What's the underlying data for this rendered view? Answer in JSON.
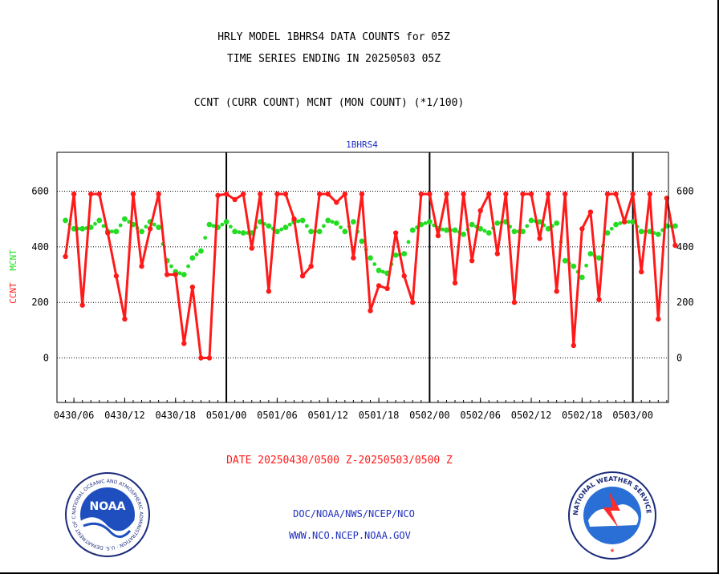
{
  "title_line1": "HRLY MODEL 1BHRS4 DATA COUNTS for 05Z",
  "title_line2": "TIME SERIES ENDING IN 20250503 05Z",
  "subtitle": "CCNT (CURR COUNT) MCNT (MON COUNT) (*1/100)",
  "plot_label": "1BHRS4",
  "date_range": "DATE 20250430/0500 Z-20250503/0500 Z",
  "footer": {
    "org_line": "DOC/NOAA/NWS/NCEP/NCO",
    "url_line": "WWW.NCO.NCEP.NOAA.GOV"
  },
  "logos": {
    "noaa": {
      "center": "NOAA",
      "ring_text": "NATIONAL OCEANIC AND ATMOSPHERIC ADMINISTRATION · U.S. DEPARTMENT OF COMMERCE"
    },
    "nws": {
      "ring_text": "NATIONAL WEATHER SERVICE"
    }
  },
  "colors": {
    "ccnt": "#ff1a1a",
    "mcnt": "#22dd22",
    "title": "#000000",
    "label_blue": "#1f2fbf",
    "date_red": "#ff1a1a"
  },
  "chart_data": {
    "type": "line",
    "ylabel_parts": [
      {
        "text": "CCNT",
        "color": "#ff1a1a"
      },
      {
        "text": "MCNT",
        "color": "#22dd22"
      }
    ],
    "ylim": [
      -160,
      740
    ],
    "yticks": [
      0,
      200,
      400,
      600
    ],
    "x_start_hour": -1,
    "x_end_hour": 71.2,
    "xticks": [
      {
        "hour": 1,
        "label": "0430/06"
      },
      {
        "hour": 7,
        "label": "0430/12"
      },
      {
        "hour": 13,
        "label": "0430/18"
      },
      {
        "hour": 19,
        "label": "0501/00"
      },
      {
        "hour": 25,
        "label": "0501/06"
      },
      {
        "hour": 31,
        "label": "0501/12"
      },
      {
        "hour": 37,
        "label": "0501/18"
      },
      {
        "hour": 43,
        "label": "0502/00"
      },
      {
        "hour": 49,
        "label": "0502/06"
      },
      {
        "hour": 55,
        "label": "0502/12"
      },
      {
        "hour": 61,
        "label": "0502/18"
      },
      {
        "hour": 67,
        "label": "0503/00"
      }
    ],
    "day_boundaries": [
      19,
      43,
      67
    ],
    "grid": "horizontal dotted",
    "series": [
      {
        "name": "CCNT",
        "color": "#ff1a1a",
        "values": [
          365,
          590,
          190,
          590,
          590,
          450,
          295,
          140,
          590,
          330,
          465,
          590,
          300,
          300,
          52,
          255,
          0,
          0,
          585,
          590,
          570,
          590,
          395,
          590,
          240,
          590,
          590,
          500,
          295,
          330,
          590,
          590,
          560,
          590,
          360,
          590,
          170,
          260,
          250,
          450,
          295,
          200,
          590,
          590,
          440,
          590,
          270,
          590,
          350,
          530,
          590,
          375,
          590,
          200,
          590,
          590,
          430,
          590,
          240,
          590,
          45,
          465,
          525,
          210,
          590,
          590,
          490,
          590,
          310,
          590,
          140,
          575,
          405
        ]
      },
      {
        "name": "MCNT",
        "color": "#22dd22",
        "values": [
          495,
          465,
          465,
          470,
          495,
          455,
          455,
          500,
          480,
          455,
          490,
          470,
          350,
          310,
          300,
          360,
          385,
          480,
          470,
          490,
          455,
          450,
          450,
          490,
          475,
          455,
          470,
          490,
          495,
          455,
          455,
          495,
          485,
          455,
          490,
          420,
          360,
          315,
          305,
          370,
          375,
          460,
          480,
          490,
          465,
          460,
          460,
          445,
          480,
          465,
          450,
          485,
          490,
          455,
          455,
          495,
          490,
          465,
          485,
          350,
          330,
          290,
          375,
          360,
          450,
          480,
          490,
          490,
          455,
          455,
          445,
          475,
          475
        ]
      }
    ]
  }
}
